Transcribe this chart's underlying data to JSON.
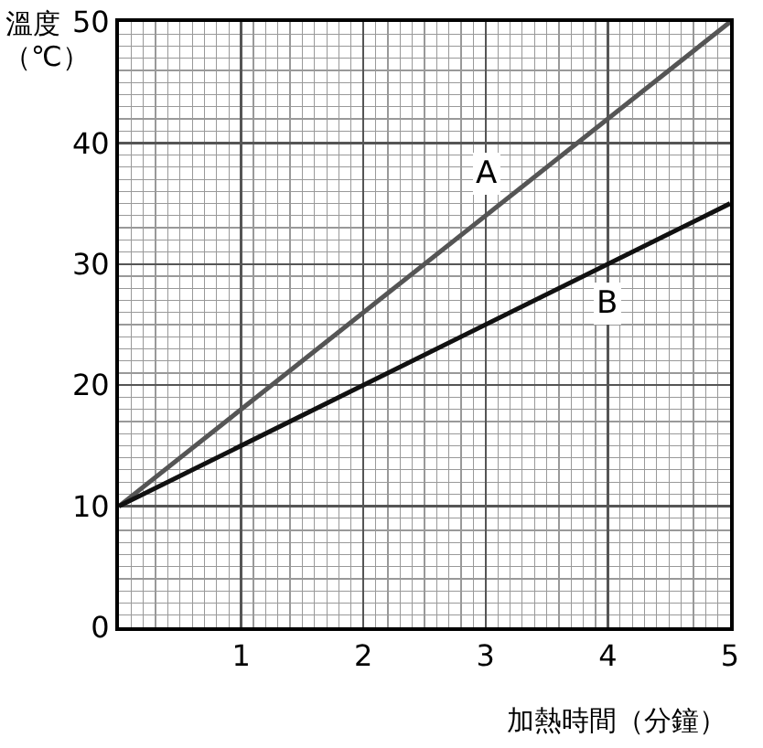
{
  "chart_data": {
    "type": "line",
    "ylabel": "溫度（℃）",
    "xlabel": "加熱時間（分鐘）",
    "x": [
      0,
      5
    ],
    "series": [
      {
        "name": "A",
        "color": "#555555",
        "values": [
          10,
          50
        ]
      },
      {
        "name": "B",
        "color": "#111111",
        "values": [
          10,
          35
        ]
      }
    ],
    "xlim": [
      0,
      5
    ],
    "xticks": [
      1,
      2,
      3,
      4,
      5
    ],
    "ylim": [
      0,
      50
    ],
    "yticks": [
      0,
      10,
      20,
      30,
      40,
      50
    ],
    "grid": true,
    "legend": false,
    "marker": "none",
    "line_style": "solid"
  }
}
